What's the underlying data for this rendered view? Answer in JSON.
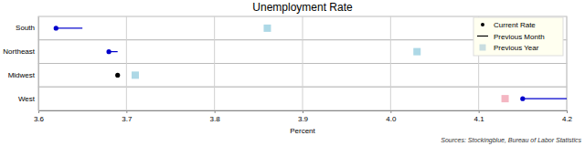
{
  "chart_data": {
    "type": "dot",
    "title": "Unemployment Rate",
    "x_label": "Percent",
    "source": "Sources: Stockingblue, Bureau of Labor Statistics",
    "categories": [
      "South",
      "Northeast",
      "Midwest",
      "West"
    ],
    "series": [
      {
        "name": "Current Rate",
        "marker": "circle",
        "color": "#000000",
        "colors": [
          "#0000cc",
          "#0000cc",
          "#000000",
          "#0000cc"
        ],
        "values": [
          3.62,
          3.68,
          3.69,
          4.15
        ]
      },
      {
        "name": "Previous Month",
        "marker": "line",
        "line_style": "solid",
        "color": "#000000",
        "colors": [
          "#0000cc",
          "#0000cc",
          "#0000cc",
          "#0000cc"
        ],
        "values": [
          3.65,
          3.69,
          3.69,
          4.2
        ]
      },
      {
        "name": "Previous Year",
        "marker": "square",
        "color": "#c9dde0",
        "colors": [
          "#add8e6",
          "#add8e6",
          "#add8e6",
          "#f4b6c2"
        ],
        "values": [
          3.86,
          4.03,
          3.71,
          4.13
        ]
      }
    ],
    "xlim": [
      3.6,
      4.2
    ],
    "xticks": [
      3.6,
      3.7,
      3.8,
      3.9,
      {
        "value": 4,
        "label": "4.0"
      },
      4.1,
      4.2
    ],
    "grid": true,
    "legend": "upper right"
  }
}
